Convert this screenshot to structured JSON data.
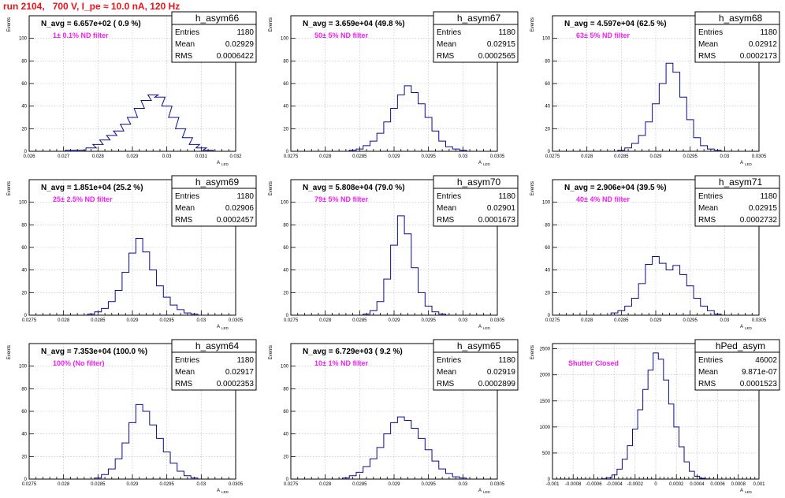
{
  "page_title": "run 2104,   700 V, I_pe ≈ 10.0 nA, 120 Hz",
  "stat_labels": {
    "entries": "Entries",
    "mean": "Mean",
    "rms": "RMS"
  },
  "axis_text": {
    "ylabel": "Events",
    "xlabel": "A",
    "xlabel_sub": "LED"
  },
  "colors": {
    "title": "#e8141c",
    "hist": "#0c0c8a",
    "filter_text": "#f020f0",
    "grid": "#b8b8b8"
  },
  "chart_data": [
    {
      "type": "bar",
      "name": "h_asym66",
      "navg": "N_avg = 6.657e+02 ( 0.9 %)",
      "filter": "1± 0.1% ND filter",
      "entries": "1180",
      "mean": "0.02929",
      "rms": "0.0006422",
      "xlim": [
        0.026,
        0.032
      ],
      "xticks": [
        "0.026",
        "0.027",
        "0.028",
        "0.029",
        "0.03",
        "0.031",
        "0.032"
      ],
      "ylim": [
        0,
        120
      ],
      "yticks": [
        "0",
        "20",
        "40",
        "60",
        "80",
        "100"
      ],
      "bins": [
        [
          0.0272,
          1
        ],
        [
          0.0275,
          1
        ],
        [
          0.0278,
          3
        ],
        [
          0.028,
          6
        ],
        [
          0.0282,
          10
        ],
        [
          0.0284,
          14
        ],
        [
          0.0286,
          18
        ],
        [
          0.0288,
          24
        ],
        [
          0.029,
          30
        ],
        [
          0.0292,
          38
        ],
        [
          0.0294,
          45
        ],
        [
          0.0296,
          50
        ],
        [
          0.0298,
          48
        ],
        [
          0.03,
          40
        ],
        [
          0.0302,
          30
        ],
        [
          0.0304,
          20
        ],
        [
          0.0306,
          12
        ],
        [
          0.0308,
          6
        ],
        [
          0.031,
          3
        ],
        [
          0.0312,
          1
        ]
      ],
      "grid": true
    },
    {
      "type": "bar",
      "name": "h_asym67",
      "navg": "N_avg = 3.659e+04 (49.8 %)",
      "filter": "50± 5% ND filter",
      "entries": "1180",
      "mean": "0.02915",
      "rms": "0.0002565",
      "xlim": [
        0.0275,
        0.0305
      ],
      "xticks": [
        "0.0275",
        "0.028",
        "0.0285",
        "0.029",
        "0.0295",
        "0.03",
        "0.0305"
      ],
      "ylim": [
        0,
        120
      ],
      "yticks": [
        "0",
        "20",
        "40",
        "60",
        "80",
        "100"
      ],
      "bins": [
        [
          0.0284,
          1
        ],
        [
          0.0285,
          2
        ],
        [
          0.0286,
          5
        ],
        [
          0.0287,
          9
        ],
        [
          0.0288,
          16
        ],
        [
          0.0289,
          26
        ],
        [
          0.029,
          38
        ],
        [
          0.0291,
          50
        ],
        [
          0.0292,
          58
        ],
        [
          0.0293,
          52
        ],
        [
          0.0294,
          42
        ],
        [
          0.0295,
          30
        ],
        [
          0.0296,
          18
        ],
        [
          0.0297,
          9
        ],
        [
          0.0298,
          4
        ],
        [
          0.0299,
          2
        ],
        [
          0.03,
          1
        ]
      ],
      "grid": true
    },
    {
      "type": "bar",
      "name": "h_asym68",
      "navg": "N_avg = 4.597e+04 (62.5 %)",
      "filter": "63± 5% ND filter",
      "entries": "1180",
      "mean": "0.02912",
      "rms": "0.0002173",
      "xlim": [
        0.0275,
        0.0305
      ],
      "xticks": [
        "0.0275",
        "0.028",
        "0.0285",
        "0.029",
        "0.0295",
        "0.03",
        "0.0305"
      ],
      "ylim": [
        0,
        120
      ],
      "yticks": [
        "0",
        "20",
        "40",
        "60",
        "80",
        "100"
      ],
      "bins": [
        [
          0.0285,
          1
        ],
        [
          0.0286,
          3
        ],
        [
          0.0287,
          7
        ],
        [
          0.0288,
          14
        ],
        [
          0.0289,
          26
        ],
        [
          0.029,
          42
        ],
        [
          0.0291,
          60
        ],
        [
          0.0292,
          78
        ],
        [
          0.0293,
          70
        ],
        [
          0.0294,
          48
        ],
        [
          0.0295,
          28
        ],
        [
          0.0296,
          12
        ],
        [
          0.0297,
          5
        ],
        [
          0.0298,
          2
        ],
        [
          0.0299,
          1
        ]
      ],
      "grid": true
    },
    {
      "type": "bar",
      "name": "h_asym69",
      "navg": "N_avg = 1.851e+04 (25.2 %)",
      "filter": "25± 2.5% ND filter",
      "entries": "1180",
      "mean": "0.02906",
      "rms": "0.0002457",
      "xlim": [
        0.0275,
        0.0305
      ],
      "xticks": [
        "0.0275",
        "0.028",
        "0.0285",
        "0.029",
        "0.0295",
        "0.03",
        "0.0305"
      ],
      "ylim": [
        0,
        120
      ],
      "yticks": [
        "0",
        "20",
        "40",
        "60",
        "80",
        "100"
      ],
      "bins": [
        [
          0.0284,
          1
        ],
        [
          0.0285,
          3
        ],
        [
          0.0286,
          6
        ],
        [
          0.0287,
          12
        ],
        [
          0.0288,
          22
        ],
        [
          0.0289,
          38
        ],
        [
          0.029,
          55
        ],
        [
          0.0291,
          68
        ],
        [
          0.0292,
          56
        ],
        [
          0.0293,
          40
        ],
        [
          0.0294,
          26
        ],
        [
          0.0295,
          16
        ],
        [
          0.0296,
          9
        ],
        [
          0.0297,
          5
        ],
        [
          0.0298,
          2
        ],
        [
          0.0299,
          1
        ]
      ],
      "grid": true
    },
    {
      "type": "bar",
      "name": "h_asym70",
      "navg": "N_avg = 5.808e+04 (79.0 %)",
      "filter": "79± 5% ND filter",
      "entries": "1180",
      "mean": "0.02901",
      "rms": "0.0001673",
      "xlim": [
        0.0275,
        0.0305
      ],
      "xticks": [
        "0.0275",
        "0.028",
        "0.0285",
        "0.029",
        "0.0295",
        "0.03",
        "0.0305"
      ],
      "ylim": [
        0,
        120
      ],
      "yticks": [
        "0",
        "20",
        "40",
        "60",
        "80",
        "100"
      ],
      "bins": [
        [
          0.0286,
          1
        ],
        [
          0.0287,
          4
        ],
        [
          0.0288,
          12
        ],
        [
          0.0289,
          32
        ],
        [
          0.029,
          62
        ],
        [
          0.0291,
          88
        ],
        [
          0.0292,
          72
        ],
        [
          0.0293,
          42
        ],
        [
          0.0294,
          20
        ],
        [
          0.0295,
          8
        ],
        [
          0.0296,
          3
        ],
        [
          0.0297,
          1
        ]
      ],
      "grid": true
    },
    {
      "type": "bar",
      "name": "h_asym71",
      "navg": "N_avg = 2.906e+04 (39.5 %)",
      "filter": "40± 4% ND filter",
      "entries": "1180",
      "mean": "0.02915",
      "rms": "0.0002732",
      "xlim": [
        0.0275,
        0.0305
      ],
      "xticks": [
        "0.0275",
        "0.028",
        "0.0285",
        "0.029",
        "0.0295",
        "0.03",
        "0.0305"
      ],
      "ylim": [
        0,
        120
      ],
      "yticks": [
        "0",
        "20",
        "40",
        "60",
        "80",
        "100"
      ],
      "bins": [
        [
          0.0284,
          2
        ],
        [
          0.0285,
          4
        ],
        [
          0.0286,
          8
        ],
        [
          0.0287,
          15
        ],
        [
          0.0288,
          28
        ],
        [
          0.0289,
          45
        ],
        [
          0.029,
          52
        ],
        [
          0.0291,
          46
        ],
        [
          0.0292,
          40
        ],
        [
          0.0293,
          44
        ],
        [
          0.0294,
          36
        ],
        [
          0.0295,
          26
        ],
        [
          0.0296,
          15
        ],
        [
          0.0297,
          8
        ],
        [
          0.0298,
          4
        ],
        [
          0.0299,
          1
        ]
      ],
      "grid": true
    },
    {
      "type": "bar",
      "name": "h_asym64",
      "navg": "N_avg = 7.353e+04 (100.0 %)",
      "filter": "100% (No filter)",
      "entries": "1180",
      "mean": "0.02917",
      "rms": "0.0002353",
      "xlim": [
        0.0275,
        0.0305
      ],
      "xticks": [
        "0.0275",
        "0.028",
        "0.0285",
        "0.029",
        "0.0295",
        "0.03",
        "0.0305"
      ],
      "ylim": [
        0,
        120
      ],
      "yticks": [
        "0",
        "20",
        "40",
        "60",
        "80",
        "100"
      ],
      "bins": [
        [
          0.0285,
          1
        ],
        [
          0.0286,
          4
        ],
        [
          0.0287,
          9
        ],
        [
          0.0288,
          18
        ],
        [
          0.0289,
          32
        ],
        [
          0.029,
          50
        ],
        [
          0.0291,
          66
        ],
        [
          0.0292,
          60
        ],
        [
          0.0293,
          48
        ],
        [
          0.0294,
          36
        ],
        [
          0.0295,
          24
        ],
        [
          0.0296,
          14
        ],
        [
          0.0297,
          7
        ],
        [
          0.0298,
          3
        ],
        [
          0.0299,
          1
        ]
      ],
      "grid": true
    },
    {
      "type": "bar",
      "name": "h_asym65",
      "navg": "N_avg = 6.729e+03 ( 9.2 %)",
      "filter": "10± 1% ND filter",
      "entries": "1180",
      "mean": "0.02919",
      "rms": "0.0002899",
      "xlim": [
        0.0275,
        0.0305
      ],
      "xticks": [
        "0.0275",
        "0.028",
        "0.0285",
        "0.029",
        "0.0295",
        "0.03",
        "0.0305"
      ],
      "ylim": [
        0,
        120
      ],
      "yticks": [
        "0",
        "20",
        "40",
        "60",
        "80",
        "100"
      ],
      "bins": [
        [
          0.0283,
          1
        ],
        [
          0.0284,
          3
        ],
        [
          0.0285,
          6
        ],
        [
          0.0286,
          11
        ],
        [
          0.0287,
          18
        ],
        [
          0.0288,
          28
        ],
        [
          0.0289,
          40
        ],
        [
          0.029,
          50
        ],
        [
          0.0291,
          55
        ],
        [
          0.0292,
          52
        ],
        [
          0.0293,
          45
        ],
        [
          0.0294,
          36
        ],
        [
          0.0295,
          26
        ],
        [
          0.0296,
          16
        ],
        [
          0.0297,
          9
        ],
        [
          0.0298,
          5
        ],
        [
          0.0299,
          2
        ],
        [
          0.03,
          1
        ]
      ],
      "grid": true
    },
    {
      "type": "bar",
      "name": "hPed_asym",
      "navg": "",
      "filter": "Shutter Closed",
      "entries": "46002",
      "mean": "9.871e-07",
      "rms": "0.0001523",
      "xlim": [
        -0.001,
        0.001
      ],
      "xticks": [
        "-0.001",
        "-0.0008",
        "-0.0006",
        "-0.0004",
        "-0.0002",
        "0",
        "0.0002",
        "0.0004",
        "0.0006",
        "0.0008",
        "0.001"
      ],
      "ylim": [
        0,
        2600
      ],
      "yticks": [
        "0",
        "500",
        "1000",
        "1500",
        "2000",
        "2500"
      ],
      "bins": [
        [
          -0.0005,
          5
        ],
        [
          -0.00045,
          25
        ],
        [
          -0.0004,
          80
        ],
        [
          -0.00035,
          190
        ],
        [
          -0.0003,
          380
        ],
        [
          -0.00025,
          640
        ],
        [
          -0.0002,
          960
        ],
        [
          -0.00015,
          1330
        ],
        [
          -0.0001,
          1720
        ],
        [
          -5e-05,
          2090
        ],
        [
          0,
          2420
        ],
        [
          5e-05,
          2300
        ],
        [
          0.0001,
          1900
        ],
        [
          0.00015,
          1440
        ],
        [
          0.0002,
          1000
        ],
        [
          0.00025,
          620
        ],
        [
          0.0003,
          330
        ],
        [
          0.00035,
          150
        ],
        [
          0.0004,
          55
        ],
        [
          0.00045,
          15
        ],
        [
          0.0005,
          4
        ]
      ],
      "grid": true
    }
  ]
}
